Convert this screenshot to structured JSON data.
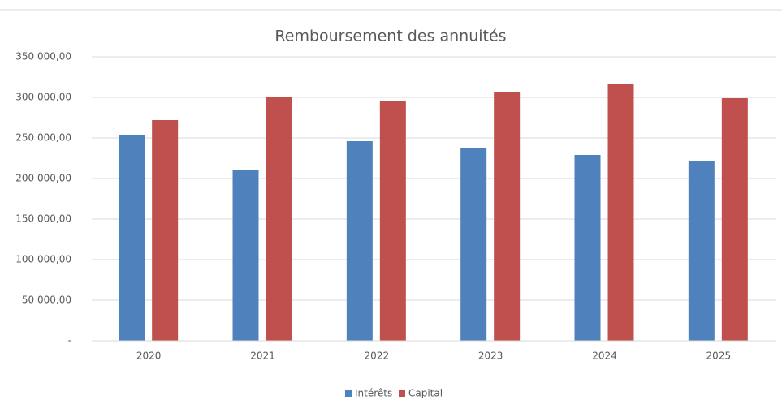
{
  "chart_data": {
    "type": "bar",
    "title": "Remboursement des annuités",
    "categories": [
      "2020",
      "2021",
      "2022",
      "2023",
      "2024",
      "2025"
    ],
    "series": [
      {
        "name": "Intérêts",
        "color": "#4f81bd",
        "values": [
          254000,
          210000,
          246000,
          238000,
          229000,
          221000
        ]
      },
      {
        "name": "Capital",
        "color": "#c0504d",
        "values": [
          272000,
          300000,
          296000,
          307000,
          316000,
          299000
        ]
      }
    ],
    "ylim": [
      0,
      350000
    ],
    "yticks": [
      {
        "value": 0,
        "label": "-"
      },
      {
        "value": 50000,
        "label": "50 000,00"
      },
      {
        "value": 100000,
        "label": "100 000,00"
      },
      {
        "value": 150000,
        "label": "150 000,00"
      },
      {
        "value": 200000,
        "label": "200 000,00"
      },
      {
        "value": 250000,
        "label": "250 000,00"
      },
      {
        "value": 300000,
        "label": "300 000,00"
      },
      {
        "value": 350000,
        "label": "350 000,00"
      }
    ],
    "grid": true,
    "legend": "bottom"
  }
}
